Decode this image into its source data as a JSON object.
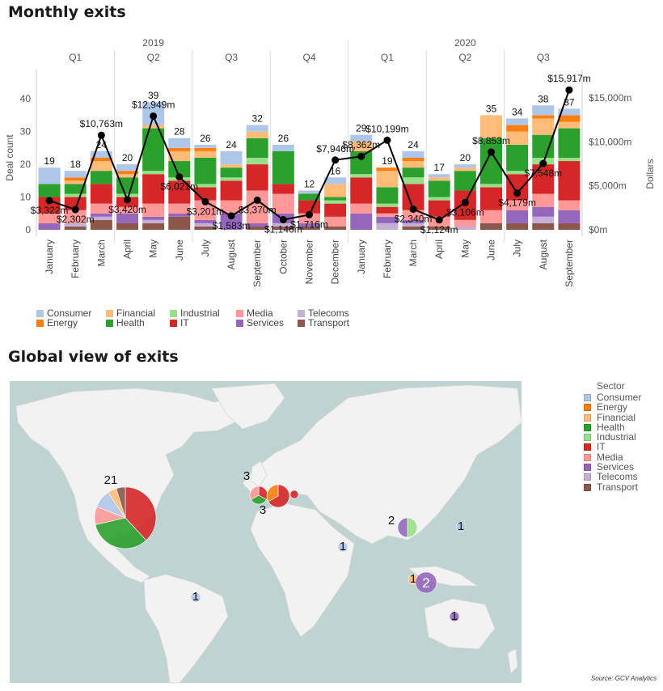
{
  "sections": {
    "monthly_title": "Monthly exits",
    "global_title": "Global view of exits",
    "source": "Source: GCV Analytics"
  },
  "colors": {
    "Consumer": "#aec7e8",
    "Energy": "#ff7f0e",
    "Financial": "#ffbb78",
    "Health": "#2ca02c",
    "Industrial": "#98df8a",
    "IT": "#d62728",
    "Media": "#ff9896",
    "Services": "#9467bd",
    "Telecoms": "#c5b0d5",
    "Transport": "#8c564b"
  },
  "legend_items": [
    "Consumer",
    "Financial",
    "Industrial",
    "Media",
    "Telecoms",
    "Energy",
    "Health",
    "IT",
    "Services",
    "Transport"
  ],
  "map_legend": {
    "title": "Sector",
    "items": [
      "Consumer",
      "Energy",
      "Financial",
      "Health",
      "Industrial",
      "IT",
      "Media",
      "Services",
      "Telecoms",
      "Transport"
    ]
  },
  "chart_data": {
    "type": "bar",
    "title": "Monthly exits",
    "ylabel": "Deal count",
    "y2label": "Dollars",
    "ylim": [
      0,
      44
    ],
    "y2lim": [
      0,
      16400
    ],
    "yticks": [
      "0",
      "10",
      "20",
      "30",
      "40"
    ],
    "y2ticks": [
      "$0m",
      "$5,000m",
      "$10,000m",
      "$15,000m"
    ],
    "years": [
      "2019",
      "2020"
    ],
    "quarters": [
      "Q1",
      "Q2",
      "Q3",
      "Q4",
      "Q1",
      "Q2",
      "Q3"
    ],
    "categories": [
      "January",
      "February",
      "March",
      "April",
      "May",
      "June",
      "July",
      "August",
      "September",
      "October",
      "November",
      "December",
      "January",
      "February",
      "March",
      "April",
      "May",
      "June",
      "July",
      "August",
      "September"
    ],
    "series_order": [
      "Transport",
      "Telecoms",
      "Services",
      "Media",
      "IT",
      "Industrial",
      "Health",
      "Financial",
      "Energy",
      "Consumer"
    ],
    "stacks": [
      {
        "Transport": 0,
        "Telecoms": 0,
        "Services": 2,
        "Media": 3,
        "IT": 5,
        "Industrial": 0,
        "Health": 4,
        "Financial": 0,
        "Energy": 0,
        "Consumer": 5
      },
      {
        "Transport": 1,
        "Telecoms": 1,
        "Services": 0,
        "Media": 4,
        "IT": 4,
        "Industrial": 1,
        "Health": 3,
        "Financial": 1,
        "Energy": 1,
        "Consumer": 2
      },
      {
        "Transport": 3,
        "Telecoms": 1,
        "Services": 1,
        "Media": 3,
        "IT": 6,
        "Industrial": 0,
        "Health": 4,
        "Financial": 3,
        "Energy": 1,
        "Consumer": 2
      },
      {
        "Transport": 2,
        "Telecoms": 0,
        "Services": 3,
        "Media": 2,
        "IT": 3,
        "Industrial": 1,
        "Health": 5,
        "Financial": 1,
        "Energy": 1,
        "Consumer": 2
      },
      {
        "Transport": 2,
        "Telecoms": 1,
        "Services": 1,
        "Media": 4,
        "IT": 9,
        "Industrial": 1,
        "Health": 13,
        "Financial": 1,
        "Energy": 0,
        "Consumer": 7
      },
      {
        "Transport": 4,
        "Telecoms": 0,
        "Services": 1,
        "Media": 3,
        "IT": 7,
        "Industrial": 1,
        "Health": 5,
        "Financial": 3,
        "Energy": 1,
        "Consumer": 3
      },
      {
        "Transport": 1,
        "Telecoms": 1,
        "Services": 1,
        "Media": 6,
        "IT": 4,
        "Industrial": 1,
        "Health": 8,
        "Financial": 2,
        "Energy": 1,
        "Consumer": 1
      },
      {
        "Transport": 0,
        "Telecoms": 0,
        "Services": 5,
        "Media": 4,
        "IT": 6,
        "Industrial": 1,
        "Health": 3,
        "Financial": 1,
        "Energy": 0,
        "Consumer": 4
      },
      {
        "Transport": 1,
        "Telecoms": 0,
        "Services": 1,
        "Media": 10,
        "IT": 8,
        "Industrial": 2,
        "Health": 6,
        "Financial": 2,
        "Energy": 0,
        "Consumer": 2
      },
      {
        "Transport": 1,
        "Telecoms": 1,
        "Services": 3,
        "Media": 6,
        "IT": 3,
        "Industrial": 0,
        "Health": 10,
        "Financial": 0,
        "Energy": 0,
        "Consumer": 2
      },
      {
        "Transport": 1,
        "Telecoms": 0,
        "Services": 1,
        "Media": 3,
        "IT": 4,
        "Industrial": 0,
        "Health": 2,
        "Financial": 0,
        "Energy": 0,
        "Consumer": 1
      },
      {
        "Transport": 1,
        "Telecoms": 0,
        "Services": 0,
        "Media": 3,
        "IT": 4,
        "Industrial": 1,
        "Health": 1,
        "Financial": 4,
        "Energy": 0,
        "Consumer": 2
      },
      {
        "Transport": 0,
        "Telecoms": 0,
        "Services": 5,
        "Media": 3,
        "IT": 8,
        "Industrial": 1,
        "Health": 7,
        "Financial": 3,
        "Energy": 0,
        "Consumer": 2
      },
      {
        "Transport": 0,
        "Telecoms": 2,
        "Services": 2,
        "Media": 1,
        "IT": 2,
        "Industrial": 1,
        "Health": 5,
        "Financial": 5,
        "Energy": 1,
        "Consumer": 0
      },
      {
        "Transport": 1,
        "Telecoms": 1,
        "Services": 1,
        "Media": 3,
        "IT": 8,
        "Industrial": 2,
        "Health": 3,
        "Financial": 2,
        "Energy": 1,
        "Consumer": 2
      },
      {
        "Transport": 1,
        "Telecoms": 0,
        "Services": 0,
        "Media": 3,
        "IT": 5,
        "Industrial": 1,
        "Health": 5,
        "Financial": 1,
        "Energy": 0,
        "Consumer": 1
      },
      {
        "Transport": 0,
        "Telecoms": 1,
        "Services": 0,
        "Media": 2,
        "IT": 9,
        "Industrial": 0,
        "Health": 6,
        "Financial": 1,
        "Energy": 0,
        "Consumer": 1
      },
      {
        "Transport": 2,
        "Telecoms": 0,
        "Services": 0,
        "Media": 4,
        "IT": 7,
        "Industrial": 1,
        "Health": 14,
        "Financial": 7,
        "Energy": 0,
        "Consumer": 0
      },
      {
        "Transport": 2,
        "Telecoms": 0,
        "Services": 4,
        "Media": 3,
        "IT": 8,
        "Industrial": 1,
        "Health": 8,
        "Financial": 4,
        "Energy": 2,
        "Consumer": 2
      },
      {
        "Transport": 2,
        "Telecoms": 2,
        "Services": 3,
        "Media": 4,
        "IT": 9,
        "Industrial": 2,
        "Health": 7,
        "Financial": 5,
        "Energy": 1,
        "Consumer": 3
      },
      {
        "Transport": 2,
        "Telecoms": 0,
        "Services": 4,
        "Media": 3,
        "IT": 12,
        "Industrial": 1,
        "Health": 9,
        "Financial": 2,
        "Energy": 2,
        "Consumer": 2
      }
    ],
    "deal_count_labels": [
      "19",
      "18",
      "24",
      "20",
      "39",
      "28",
      "26",
      "24",
      "32",
      "26",
      "12",
      "16",
      "29",
      "19",
      "24",
      "17",
      "20",
      "35",
      "34",
      "38",
      "37"
    ],
    "dollars": [
      3322,
      2302,
      10763,
      3420,
      12949,
      6021,
      3201,
      1583,
      3370,
      1146,
      1716,
      7946,
      8362,
      10199,
      2340,
      1124,
      3106,
      8853,
      4179,
      7548,
      15917
    ],
    "dollar_labels": [
      "$3,322m",
      "$2,302m",
      "$10,763m",
      "$3,420m",
      "$12,949m",
      "$6,021m",
      "$3,201m",
      "$1,583m",
      "$3,370m",
      "$1,146m",
      "$1,716m",
      "$7,946m",
      "$8,362m",
      "$10,199m",
      "$2,340m",
      "$1,124m",
      "$3,106m",
      "$8,853m",
      "$4,179m",
      "$7,548m",
      "$15,917m"
    ]
  },
  "map_bubbles": [
    {
      "label": "21",
      "region": "North America",
      "slices": [
        [
          "IT",
          8
        ],
        [
          "Health",
          7
        ],
        [
          "Media",
          2
        ],
        [
          "Consumer",
          2
        ],
        [
          "Financial",
          1
        ],
        [
          "Transport",
          1
        ]
      ]
    },
    {
      "label": "3",
      "region": "United Kingdom",
      "slices": [
        [
          "IT",
          1
        ],
        [
          "Health",
          1
        ],
        [
          "Media",
          1
        ]
      ]
    },
    {
      "label": "3",
      "region": "Western Europe",
      "slices": [
        [
          "IT",
          2
        ],
        [
          "Energy",
          1
        ]
      ]
    },
    {
      "label": "",
      "region": "Central Europe",
      "slices": [
        [
          "IT",
          1
        ]
      ]
    },
    {
      "label": "2",
      "region": "China",
      "slices": [
        [
          "Industrial",
          1
        ],
        [
          "Services",
          1
        ]
      ]
    },
    {
      "label": "1",
      "region": "Japan",
      "slices": [
        [
          "Consumer",
          1
        ]
      ]
    },
    {
      "label": "1",
      "region": "Middle East",
      "slices": [
        [
          "Consumer",
          1
        ]
      ]
    },
    {
      "label": "1",
      "region": "Brazil",
      "slices": [
        [
          "Consumer",
          1
        ]
      ]
    },
    {
      "label": "1",
      "region": "Singapore",
      "slices": [
        [
          "Financial",
          1
        ]
      ]
    },
    {
      "label": "2",
      "region": "Indonesia",
      "slices": [
        [
          "Services",
          2
        ]
      ]
    },
    {
      "label": "1",
      "region": "Australia",
      "slices": [
        [
          "Services",
          1
        ]
      ]
    }
  ]
}
